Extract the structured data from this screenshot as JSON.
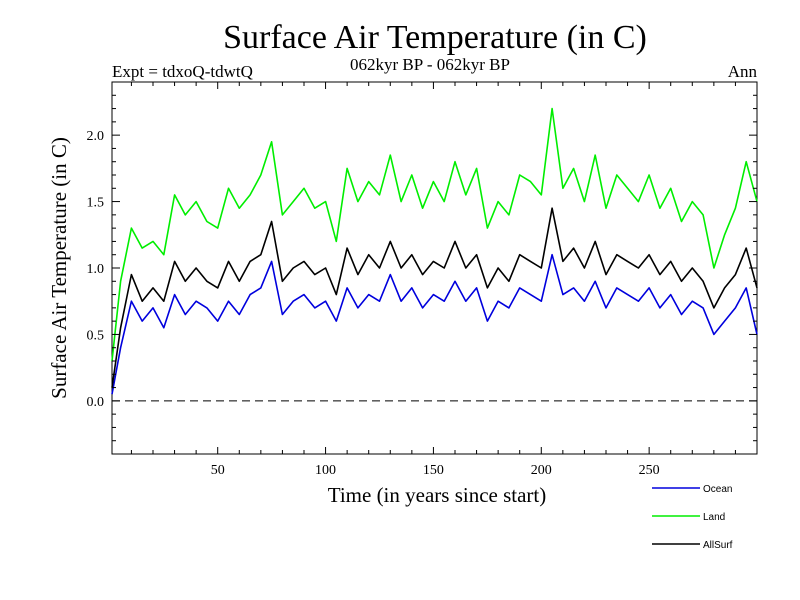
{
  "chart_data": {
    "type": "line",
    "title": "Surface Air Temperature (in C)",
    "subtitle_left": "Expt = tdxoQ-tdwtQ",
    "subtitle_center": "062kyr BP - 062kyr BP",
    "subtitle_right": "Ann",
    "xlabel": "Time (in years since start)",
    "ylabel": "Surface Air Temperature (in C)",
    "xlim": [
      1,
      300
    ],
    "ylim": [
      -0.4,
      2.4
    ],
    "xticks": [
      50,
      100,
      150,
      200,
      250
    ],
    "xtick_labels": [
      "50",
      "100",
      "150",
      "200",
      "250"
    ],
    "yticks": [
      0.0,
      0.5,
      1.0,
      1.5,
      2.0
    ],
    "ytick_labels": [
      "0.0",
      "0.5",
      "1.0",
      "1.5",
      "2.0"
    ],
    "reference_line": 0.0,
    "x": [
      1,
      5,
      10,
      15,
      20,
      25,
      30,
      35,
      40,
      45,
      50,
      55,
      60,
      65,
      70,
      75,
      80,
      85,
      90,
      95,
      100,
      105,
      110,
      115,
      120,
      125,
      130,
      135,
      140,
      145,
      150,
      155,
      160,
      165,
      170,
      175,
      180,
      185,
      190,
      195,
      200,
      205,
      210,
      215,
      220,
      225,
      230,
      235,
      240,
      245,
      250,
      255,
      260,
      265,
      270,
      275,
      280,
      285,
      290,
      295,
      300
    ],
    "series": [
      {
        "name": "Ocean",
        "color": "#0000dd",
        "values": [
          0.05,
          0.4,
          0.75,
          0.6,
          0.7,
          0.55,
          0.8,
          0.65,
          0.75,
          0.7,
          0.6,
          0.75,
          0.65,
          0.8,
          0.85,
          1.05,
          0.65,
          0.75,
          0.8,
          0.7,
          0.75,
          0.6,
          0.85,
          0.7,
          0.8,
          0.75,
          0.95,
          0.75,
          0.85,
          0.7,
          0.8,
          0.75,
          0.9,
          0.75,
          0.85,
          0.6,
          0.75,
          0.7,
          0.85,
          0.8,
          0.75,
          1.1,
          0.8,
          0.85,
          0.75,
          0.9,
          0.7,
          0.85,
          0.8,
          0.75,
          0.85,
          0.7,
          0.8,
          0.65,
          0.75,
          0.7,
          0.5,
          0.6,
          0.7,
          0.85,
          0.5
        ]
      },
      {
        "name": "Land",
        "color": "#00ee00",
        "values": [
          0.3,
          0.9,
          1.3,
          1.15,
          1.2,
          1.1,
          1.55,
          1.4,
          1.5,
          1.35,
          1.3,
          1.6,
          1.45,
          1.55,
          1.7,
          1.95,
          1.4,
          1.5,
          1.6,
          1.45,
          1.5,
          1.2,
          1.75,
          1.5,
          1.65,
          1.55,
          1.85,
          1.5,
          1.7,
          1.45,
          1.65,
          1.5,
          1.8,
          1.55,
          1.75,
          1.3,
          1.5,
          1.4,
          1.7,
          1.65,
          1.55,
          2.2,
          1.6,
          1.75,
          1.5,
          1.85,
          1.45,
          1.7,
          1.6,
          1.5,
          1.7,
          1.45,
          1.6,
          1.35,
          1.5,
          1.4,
          1.0,
          1.25,
          1.45,
          1.8,
          1.5
        ]
      },
      {
        "name": "AllSurf",
        "color": "#000000",
        "values": [
          0.1,
          0.55,
          0.95,
          0.75,
          0.85,
          0.75,
          1.05,
          0.9,
          1.0,
          0.9,
          0.85,
          1.05,
          0.9,
          1.05,
          1.1,
          1.35,
          0.9,
          1.0,
          1.05,
          0.95,
          1.0,
          0.8,
          1.15,
          0.95,
          1.1,
          1.0,
          1.2,
          1.0,
          1.1,
          0.95,
          1.05,
          1.0,
          1.2,
          1.0,
          1.1,
          0.85,
          1.0,
          0.9,
          1.1,
          1.05,
          1.0,
          1.45,
          1.05,
          1.15,
          1.0,
          1.2,
          0.95,
          1.1,
          1.05,
          1.0,
          1.1,
          0.95,
          1.05,
          0.9,
          1.0,
          0.9,
          0.7,
          0.85,
          0.95,
          1.15,
          0.85
        ]
      }
    ],
    "legend_location": "bottom-right"
  }
}
